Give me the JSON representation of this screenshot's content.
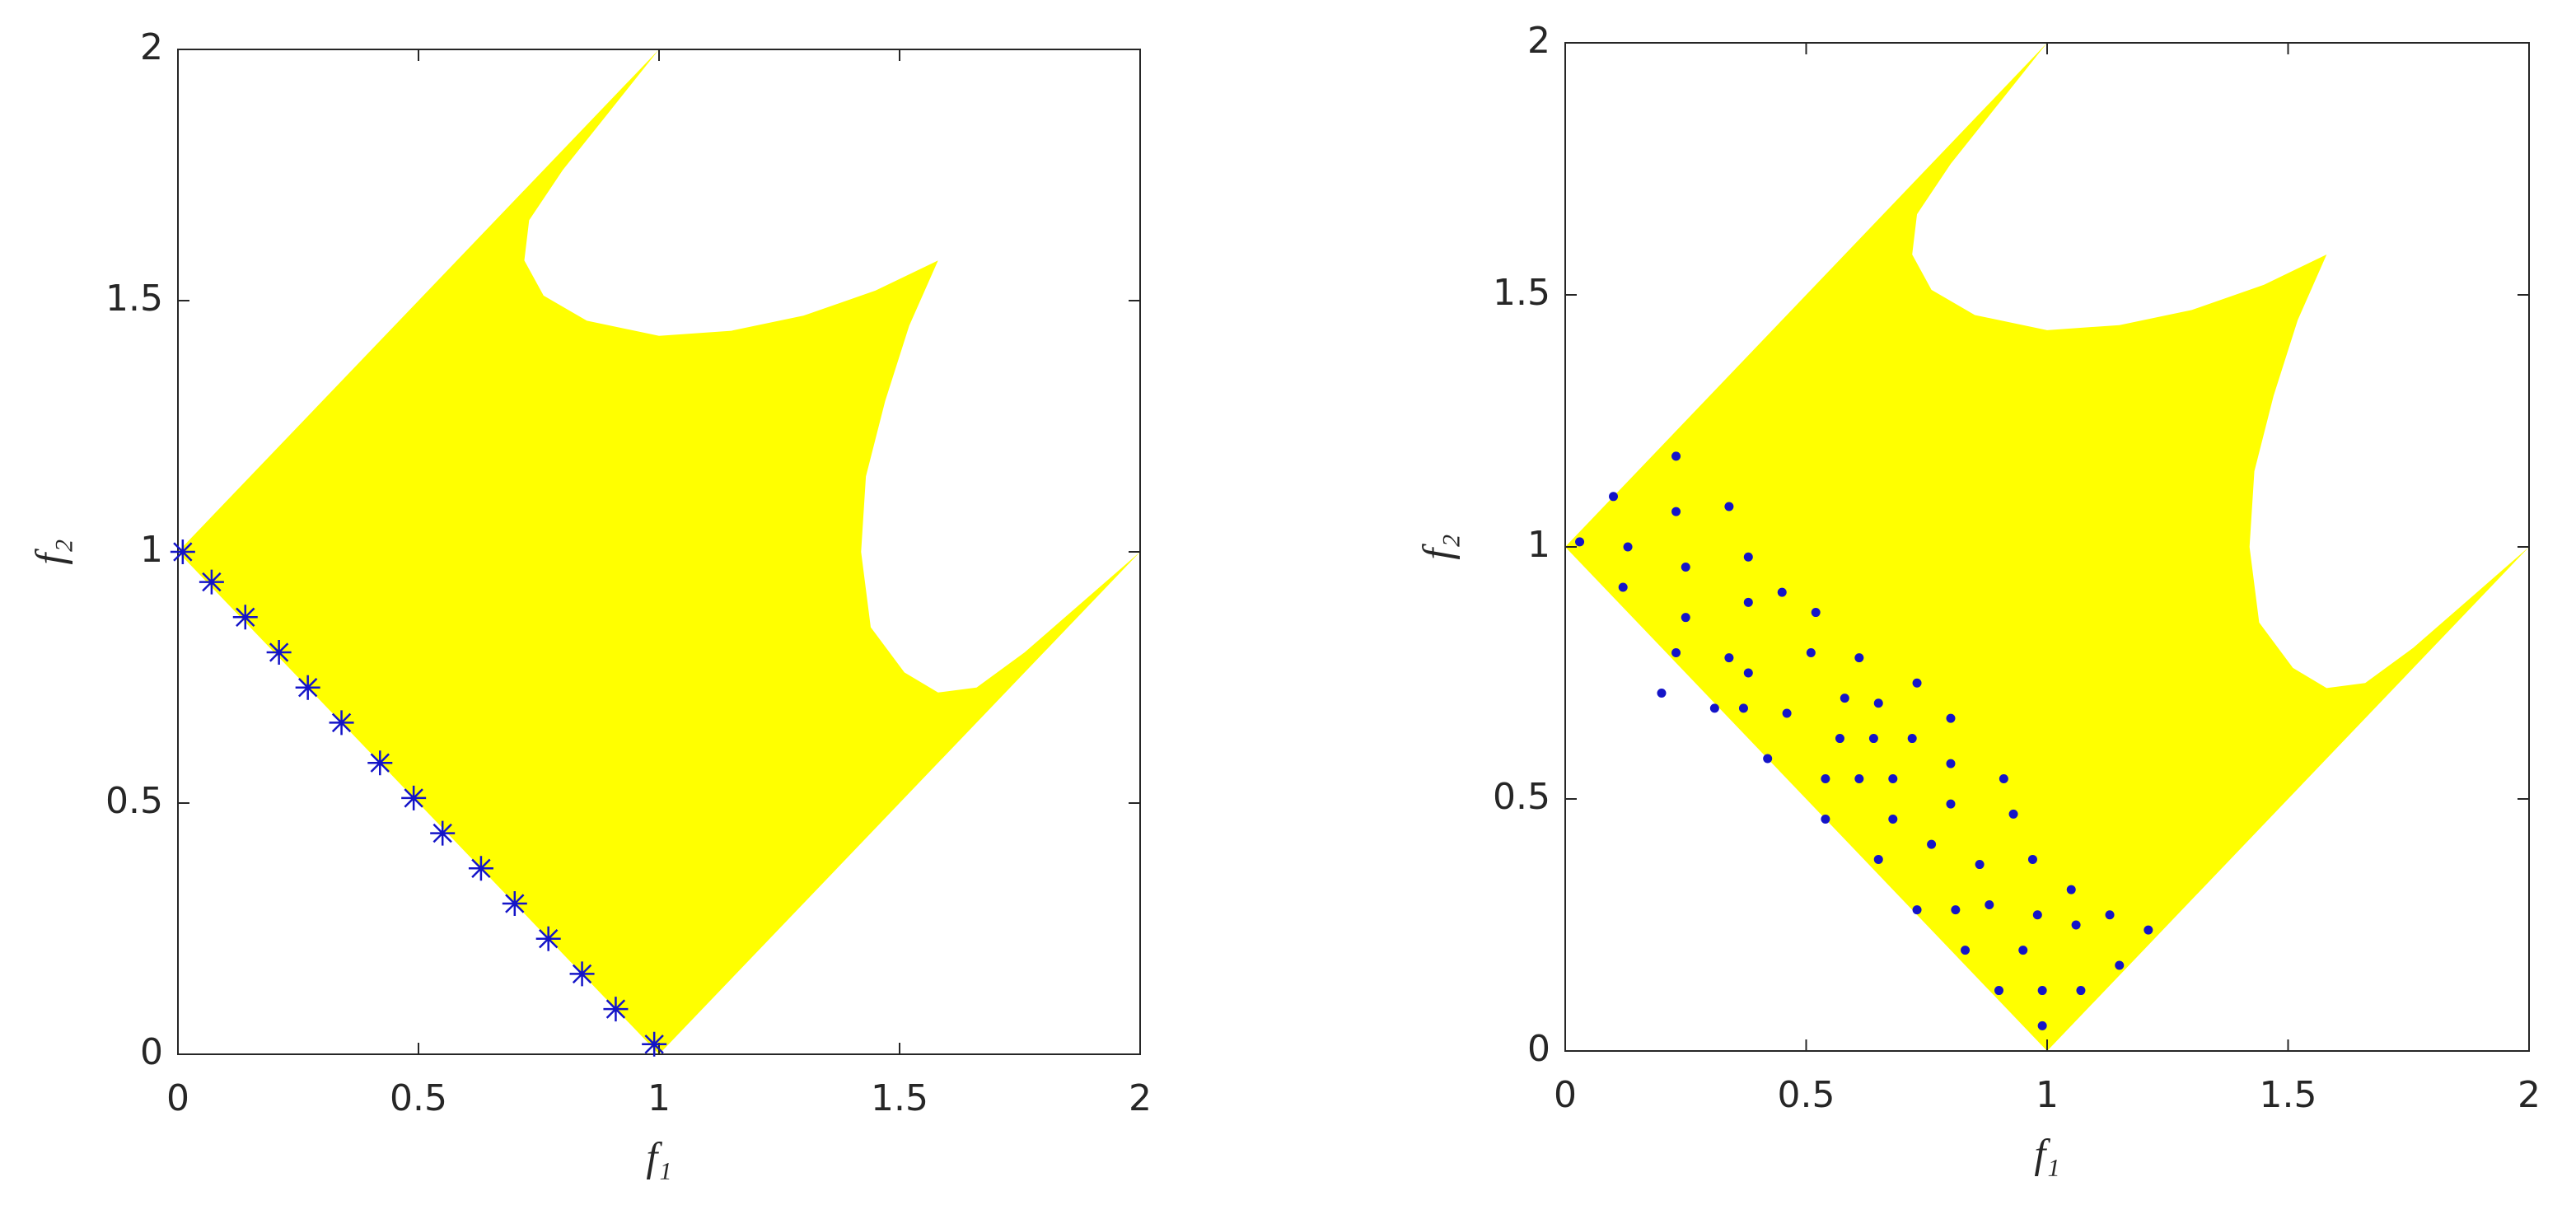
{
  "chart_data": [
    {
      "type": "scatter",
      "xlabel": "f₁",
      "ylabel": "f₂",
      "xlim": [
        0,
        2
      ],
      "ylim": [
        0,
        2
      ],
      "xticks": [
        0,
        0.5,
        1,
        1.5,
        2
      ],
      "yticks": [
        0,
        0.5,
        1,
        1.5,
        2
      ],
      "region": {
        "color": "#ffff00",
        "x": [
          0,
          1,
          0.9,
          0.8,
          0.73,
          0.72,
          0.76,
          0.85,
          1.0,
          1.15,
          1.3,
          1.45,
          1.58,
          1.52,
          1.47,
          1.43,
          1.42,
          1.44,
          1.51,
          1.58,
          1.66,
          1.76,
          1.88,
          2,
          1
        ],
        "y": [
          1,
          2,
          1.88,
          1.76,
          1.66,
          1.58,
          1.51,
          1.46,
          1.43,
          1.44,
          1.47,
          1.52,
          1.58,
          1.45,
          1.3,
          1.15,
          1.0,
          0.85,
          0.76,
          0.72,
          0.73,
          0.8,
          0.9,
          1,
          0
        ]
      },
      "series": [
        {
          "color": "#1414c8",
          "marker": "asterisk",
          "x": [
            0.01,
            0.07,
            0.14,
            0.21,
            0.27,
            0.34,
            0.42,
            0.49,
            0.55,
            0.63,
            0.7,
            0.77,
            0.84,
            0.91,
            0.99
          ],
          "y": [
            1.0,
            0.94,
            0.87,
            0.8,
            0.73,
            0.66,
            0.58,
            0.51,
            0.44,
            0.37,
            0.3,
            0.23,
            0.16,
            0.09,
            0.02
          ]
        }
      ]
    },
    {
      "type": "scatter",
      "xlabel": "f₁",
      "ylabel": "f₂",
      "xlim": [
        0,
        2
      ],
      "ylim": [
        0,
        2
      ],
      "xticks": [
        0,
        0.5,
        1,
        1.5,
        2
      ],
      "yticks": [
        0,
        0.5,
        1,
        1.5,
        2
      ],
      "region": {
        "color": "#ffff00",
        "x": [
          0,
          1,
          0.9,
          0.8,
          0.73,
          0.72,
          0.76,
          0.85,
          1.0,
          1.15,
          1.3,
          1.45,
          1.58,
          1.52,
          1.47,
          1.43,
          1.42,
          1.44,
          1.51,
          1.58,
          1.66,
          1.76,
          1.88,
          2,
          1
        ],
        "y": [
          1,
          2,
          1.88,
          1.76,
          1.66,
          1.58,
          1.51,
          1.46,
          1.43,
          1.44,
          1.47,
          1.52,
          1.58,
          1.45,
          1.3,
          1.15,
          1.0,
          0.85,
          0.76,
          0.72,
          0.73,
          0.8,
          0.9,
          1,
          0
        ]
      },
      "series": [
        {
          "color": "#1414c8",
          "marker": "dot",
          "x": [
            0.03,
            0.1,
            0.13,
            0.12,
            0.23,
            0.23,
            0.25,
            0.25,
            0.23,
            0.2,
            0.34,
            0.38,
            0.38,
            0.38,
            0.34,
            0.31,
            0.37,
            0.42,
            0.45,
            0.46,
            0.51,
            0.52,
            0.54,
            0.54,
            0.58,
            0.57,
            0.61,
            0.61,
            0.64,
            0.65,
            0.65,
            0.68,
            0.68,
            0.73,
            0.72,
            0.73,
            0.76,
            0.8,
            0.8,
            0.8,
            0.81,
            0.83,
            0.86,
            0.88,
            0.9,
            0.91,
            0.93,
            0.95,
            0.97,
            0.98,
            0.99,
            0.99,
            1.05,
            1.06,
            1.07,
            1.13,
            1.15,
            1.21
          ],
          "y": [
            1.01,
            1.1,
            1.0,
            0.92,
            1.18,
            1.07,
            0.96,
            0.86,
            0.79,
            0.71,
            1.08,
            0.98,
            0.89,
            0.75,
            0.78,
            0.68,
            0.68,
            0.58,
            0.91,
            0.67,
            0.79,
            0.87,
            0.54,
            0.46,
            0.7,
            0.62,
            0.78,
            0.54,
            0.62,
            0.69,
            0.38,
            0.46,
            0.54,
            0.73,
            0.62,
            0.28,
            0.41,
            0.66,
            0.57,
            0.49,
            0.28,
            0.2,
            0.37,
            0.29,
            0.12,
            0.54,
            0.47,
            0.2,
            0.38,
            0.27,
            0.12,
            0.05,
            0.32,
            0.25,
            0.12,
            0.27,
            0.17,
            0.24
          ]
        }
      ]
    }
  ]
}
